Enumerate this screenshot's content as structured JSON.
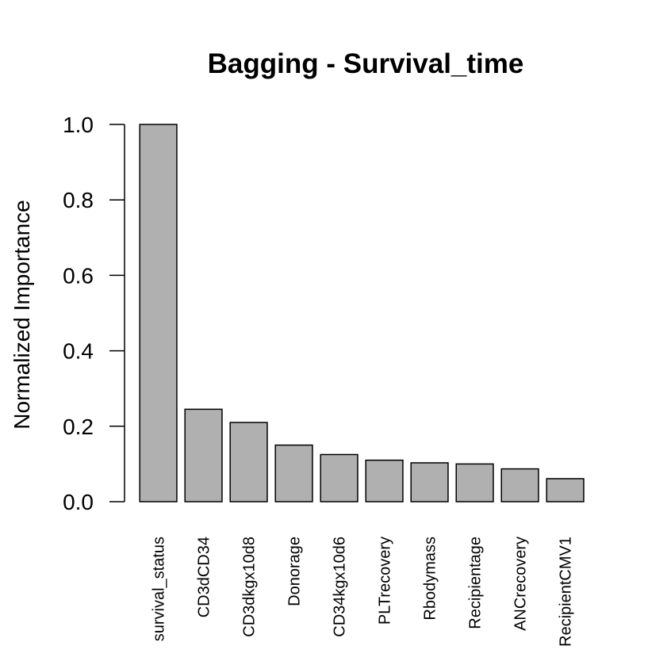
{
  "chart_data": {
    "type": "bar",
    "title": "Bagging - Survival_time",
    "xlabel": "",
    "ylabel": "Normalized Importance",
    "ylim": [
      0,
      1
    ],
    "y_ticks": [
      "0.0",
      "0.2",
      "0.4",
      "0.6",
      "0.8",
      "1.0"
    ],
    "categories": [
      "survival_status",
      "CD3dCD34",
      "CD3dkgx10d8",
      "Donorage",
      "CD34kgx10d6",
      "PLTrecovery",
      "Rbodymass",
      "Recipientage",
      "ANCrecovery",
      "RecipientCMV1"
    ],
    "values": [
      1.0,
      0.245,
      0.21,
      0.15,
      0.125,
      0.11,
      0.103,
      0.1,
      0.087,
      0.061
    ],
    "bar_color": "#b0b0b0",
    "bar_edge_color": "#000000",
    "grid": false,
    "legend": "none"
  }
}
